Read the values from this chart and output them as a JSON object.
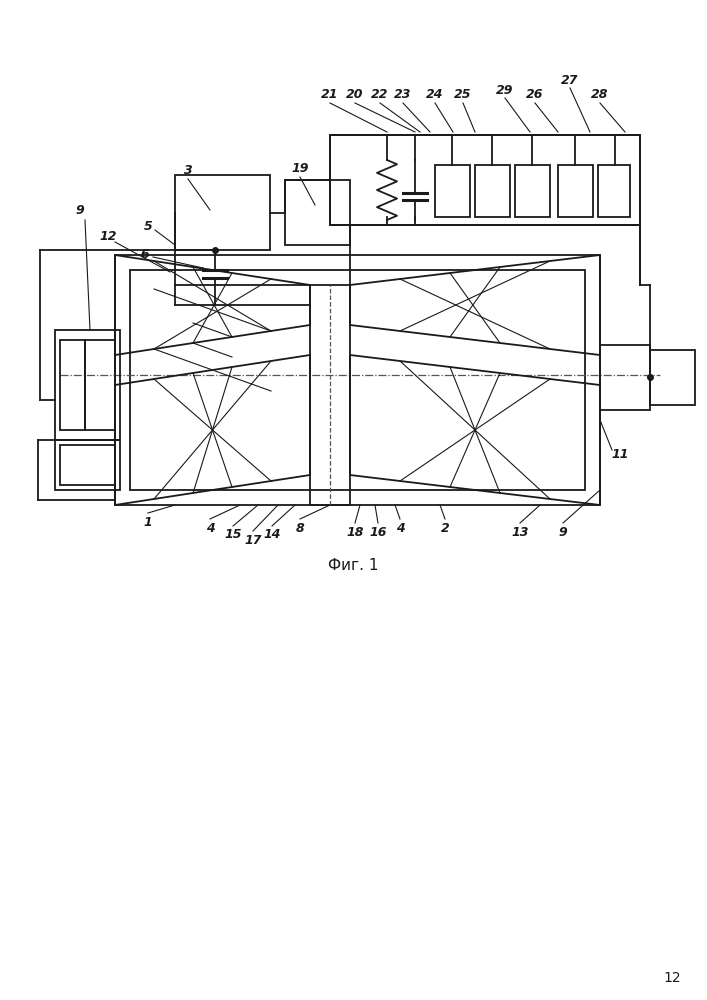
{
  "bg_color": "#ffffff",
  "line_color": "#1a1a1a",
  "fig_caption": "Фиг. 1",
  "page_number": "12"
}
